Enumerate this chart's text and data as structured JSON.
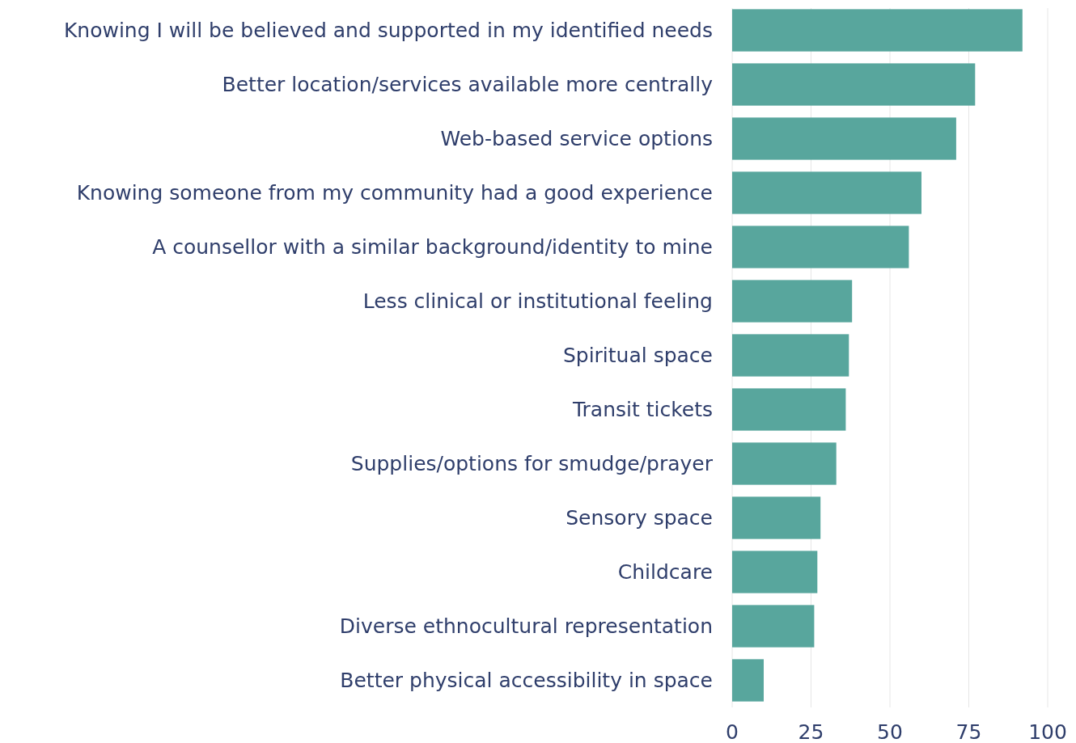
{
  "chart_data": {
    "type": "bar",
    "orientation": "horizontal",
    "categories": [
      "Knowing I will be believed and supported in my identified needs",
      "Better location/services available more centrally",
      "Web-based service options",
      "Knowing someone from my community had a good experience",
      "A counsellor with a similar background/identity to mine",
      "Less clinical or institutional feeling",
      "Spiritual space",
      "Transit tickets",
      "Supplies/options for smudge/prayer",
      "Sensory space",
      "Childcare",
      "Diverse ethnocultural representation",
      "Better physical accessibility in space"
    ],
    "values": [
      92,
      77,
      71,
      60,
      56,
      38,
      37,
      36,
      33,
      28,
      27,
      26,
      10
    ],
    "color": "#58a69d",
    "xlim": [
      0,
      100
    ],
    "xticks": [
      0,
      25,
      50,
      75,
      100
    ],
    "grid": "x"
  }
}
